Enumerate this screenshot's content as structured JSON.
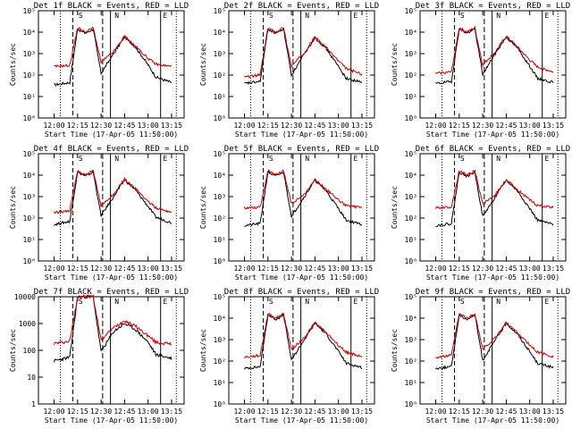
{
  "figure": {
    "xlabel": "Start Time (17-Apr-05 11:50:00)",
    "ylabel": "Counts/sec",
    "x_tick_labels": [
      "12:00",
      "12:15",
      "12:30",
      "12:45",
      "13:00",
      "13:15"
    ],
    "marker_labels": [
      "S",
      "N",
      "E"
    ]
  },
  "chart_data": [
    {
      "type": "line",
      "title": "Det 1f BLACK = Events, RED = LLD",
      "scale": "log",
      "ylim": [
        1,
        100000
      ],
      "y_tick_labels": [
        "10⁰",
        "10¹",
        "10²",
        "10³",
        "10⁴",
        "10⁵"
      ],
      "series": [
        {
          "name": "Events",
          "color": "#000000",
          "baseline": 35,
          "peak": 14000
        },
        {
          "name": "LLD",
          "color": "#cc0000",
          "baseline": 250,
          "peak": 16000
        }
      ],
      "x": [
        "12:00",
        "12:10",
        "12:15",
        "12:20",
        "12:25",
        "12:30",
        "12:38",
        "12:45",
        "12:52",
        "13:00",
        "13:05",
        "13:15"
      ],
      "events": [
        35,
        45,
        14000,
        9000,
        14000,
        120,
        1000,
        6000,
        2000,
        300,
        80,
        45
      ],
      "lld": [
        250,
        280,
        16000,
        10000,
        16000,
        400,
        1200,
        6500,
        2200,
        600,
        320,
        250
      ]
    },
    {
      "type": "line",
      "title": "Det 2f BLACK = Events, RED = LLD",
      "scale": "log",
      "ylim": [
        1,
        100000
      ],
      "y_tick_labels": [
        "10⁰",
        "10¹",
        "10²",
        "10³",
        "10⁴",
        "10⁵"
      ],
      "series": [
        {
          "name": "Events",
          "color": "#000000",
          "baseline": 40,
          "peak": 14000
        },
        {
          "name": "LLD",
          "color": "#cc0000",
          "baseline": 80,
          "peak": 16000
        }
      ],
      "x": [
        "12:00",
        "12:10",
        "12:15",
        "12:20",
        "12:25",
        "12:30",
        "12:38",
        "12:45",
        "12:52",
        "13:00",
        "13:05",
        "13:15"
      ],
      "events": [
        40,
        50,
        14000,
        9000,
        14000,
        100,
        900,
        5500,
        1800,
        250,
        70,
        45
      ],
      "lld": [
        80,
        100,
        16000,
        10000,
        16000,
        250,
        1100,
        6000,
        2000,
        450,
        200,
        110
      ]
    },
    {
      "type": "line",
      "title": "Det 3f BLACK = Events, RED = LLD",
      "scale": "log",
      "ylim": [
        1,
        100000
      ],
      "y_tick_labels": [
        "10⁰",
        "10¹",
        "10²",
        "10³",
        "10⁴",
        "10⁵"
      ],
      "series": [
        {
          "name": "Events",
          "color": "#000000",
          "baseline": 40,
          "peak": 14000
        },
        {
          "name": "LLD",
          "color": "#cc0000",
          "baseline": 120,
          "peak": 16000
        }
      ],
      "x": [
        "12:00",
        "12:10",
        "12:15",
        "12:20",
        "12:25",
        "12:30",
        "12:38",
        "12:45",
        "12:52",
        "13:00",
        "13:05",
        "13:15"
      ],
      "events": [
        40,
        50,
        14000,
        9000,
        14000,
        110,
        1000,
        6000,
        1900,
        260,
        70,
        45
      ],
      "lld": [
        120,
        140,
        16000,
        10000,
        16000,
        300,
        1200,
        6500,
        2100,
        500,
        240,
        140
      ]
    },
    {
      "type": "line",
      "title": "Det 4f BLACK = Events, RED = LLD",
      "scale": "log",
      "ylim": [
        1,
        100000
      ],
      "y_tick_labels": [
        "10⁰",
        "10¹",
        "10²",
        "10³",
        "10⁴",
        "10⁵"
      ],
      "series": [
        {
          "name": "Events",
          "color": "#000000",
          "baseline": 50,
          "peak": 14000
        },
        {
          "name": "LLD",
          "color": "#cc0000",
          "baseline": 180,
          "peak": 16000
        }
      ],
      "x": [
        "12:00",
        "12:10",
        "12:15",
        "12:20",
        "12:25",
        "12:30",
        "12:38",
        "12:45",
        "12:52",
        "13:00",
        "13:05",
        "13:15"
      ],
      "events": [
        50,
        70,
        14000,
        9000,
        14000,
        130,
        1000,
        6000,
        2000,
        350,
        110,
        60
      ],
      "lld": [
        180,
        220,
        16000,
        10000,
        16000,
        380,
        1300,
        6600,
        2300,
        600,
        300,
        190
      ]
    },
    {
      "type": "line",
      "title": "Det 5f BLACK = Events, RED = LLD",
      "scale": "log",
      "ylim": [
        1,
        100000
      ],
      "y_tick_labels": [
        "10⁰",
        "10¹",
        "10²",
        "10³",
        "10⁴",
        "10⁵"
      ],
      "series": [
        {
          "name": "Events",
          "color": "#000000",
          "baseline": 45,
          "peak": 14000
        },
        {
          "name": "LLD",
          "color": "#cc0000",
          "baseline": 300,
          "peak": 16000
        }
      ],
      "x": [
        "12:00",
        "12:10",
        "12:15",
        "12:20",
        "12:25",
        "12:30",
        "12:38",
        "12:45",
        "12:52",
        "13:00",
        "13:05",
        "13:15"
      ],
      "events": [
        45,
        55,
        14000,
        9000,
        14000,
        120,
        950,
        5800,
        1900,
        280,
        80,
        50
      ],
      "lld": [
        300,
        320,
        16000,
        10000,
        16000,
        450,
        1200,
        6200,
        2200,
        700,
        380,
        300
      ]
    },
    {
      "type": "line",
      "title": "Det 6f BLACK = Events, RED = LLD",
      "scale": "log",
      "ylim": [
        1,
        100000
      ],
      "y_tick_labels": [
        "10⁰",
        "10¹",
        "10²",
        "10³",
        "10⁴",
        "10⁵"
      ],
      "series": [
        {
          "name": "Events",
          "color": "#000000",
          "baseline": 45,
          "peak": 14000
        },
        {
          "name": "LLD",
          "color": "#cc0000",
          "baseline": 300,
          "peak": 16000
        }
      ],
      "x": [
        "12:00",
        "12:10",
        "12:15",
        "12:20",
        "12:25",
        "12:30",
        "12:38",
        "12:45",
        "12:52",
        "13:00",
        "13:05",
        "13:15"
      ],
      "events": [
        45,
        55,
        14000,
        9000,
        14000,
        120,
        950,
        5800,
        1900,
        280,
        80,
        50
      ],
      "lld": [
        300,
        330,
        16000,
        10000,
        16000,
        450,
        1200,
        6200,
        2200,
        700,
        380,
        310
      ]
    },
    {
      "type": "line",
      "title": "Det 7f BLACK = Events, RED = LLD",
      "scale": "log",
      "ylim": [
        1,
        10000
      ],
      "y_tick_labels": [
        "1",
        "10",
        "100",
        "1000",
        "10000"
      ],
      "series": [
        {
          "name": "Events",
          "color": "#000000",
          "baseline": 40,
          "peak": 10000
        },
        {
          "name": "LLD",
          "color": "#cc0000",
          "baseline": 180,
          "peak": 10000
        }
      ],
      "x": [
        "12:00",
        "12:10",
        "12:15",
        "12:20",
        "12:25",
        "12:30",
        "12:38",
        "12:45",
        "12:52",
        "13:00",
        "13:05",
        "13:15"
      ],
      "events": [
        40,
        55,
        10000,
        10000,
        10000,
        90,
        500,
        1000,
        600,
        200,
        70,
        50
      ],
      "lld": [
        180,
        220,
        10000,
        10000,
        10000,
        250,
        700,
        1300,
        800,
        350,
        200,
        170
      ]
    },
    {
      "type": "line",
      "title": "Det 8f BLACK = Events, RED = LLD",
      "scale": "log",
      "ylim": [
        1,
        100000
      ],
      "y_tick_labels": [
        "10⁰",
        "10¹",
        "10²",
        "10³",
        "10⁴",
        "10⁵"
      ],
      "series": [
        {
          "name": "Events",
          "color": "#000000",
          "baseline": 45,
          "peak": 14000
        },
        {
          "name": "LLD",
          "color": "#cc0000",
          "baseline": 150,
          "peak": 16000
        }
      ],
      "x": [
        "12:00",
        "12:10",
        "12:15",
        "12:20",
        "12:25",
        "12:30",
        "12:38",
        "12:45",
        "12:52",
        "13:00",
        "13:05",
        "13:15"
      ],
      "events": [
        45,
        55,
        14000,
        9000,
        14000,
        110,
        950,
        5800,
        1900,
        280,
        80,
        50
      ],
      "lld": [
        150,
        180,
        16000,
        10000,
        16000,
        350,
        1200,
        6200,
        2200,
        550,
        260,
        160
      ]
    },
    {
      "type": "line",
      "title": "Det 9f BLACK = Events, RED = LLD",
      "scale": "log",
      "ylim": [
        1,
        100000
      ],
      "y_tick_labels": [
        "10⁰",
        "10¹",
        "10²",
        "10³",
        "10⁴",
        "10⁵"
      ],
      "series": [
        {
          "name": "Events",
          "color": "#000000",
          "baseline": 45,
          "peak": 14000
        },
        {
          "name": "LLD",
          "color": "#cc0000",
          "baseline": 150,
          "peak": 16000
        }
      ],
      "x": [
        "12:00",
        "12:10",
        "12:15",
        "12:20",
        "12:25",
        "12:30",
        "12:38",
        "12:45",
        "12:52",
        "13:00",
        "13:05",
        "13:15"
      ],
      "events": [
        45,
        55,
        14000,
        9000,
        14000,
        110,
        950,
        5800,
        1900,
        280,
        80,
        50
      ],
      "lld": [
        150,
        180,
        16000,
        10000,
        16000,
        350,
        1200,
        6200,
        2200,
        550,
        260,
        160
      ]
    }
  ]
}
